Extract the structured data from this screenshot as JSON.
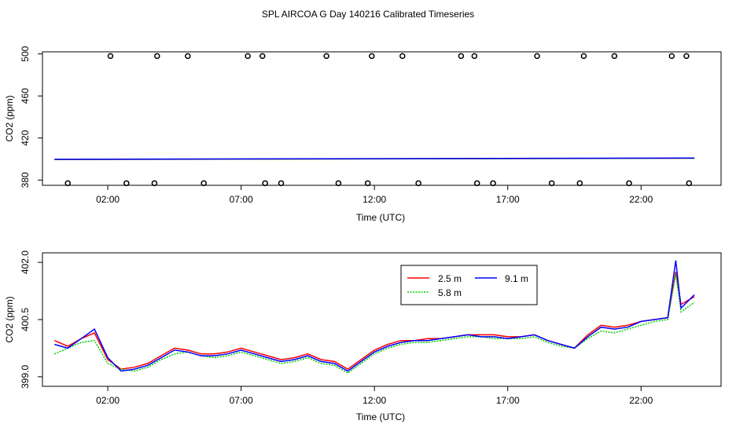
{
  "chart_data": [
    {
      "type": "scatter",
      "title": "SPL AIRCOA G  Day 140216  Calibrated Timeseries",
      "xlabel": "Time (UTC)",
      "ylabel": "CO2 (ppm)",
      "xlim": [
        -0.45,
        25
      ],
      "ylim": [
        375,
        502
      ],
      "x_ticks": [
        2,
        7,
        12,
        17,
        22
      ],
      "x_tick_labels": [
        "02:00",
        "07:00",
        "12:00",
        "17:00",
        "22:00"
      ],
      "y_ticks": [
        380,
        420,
        460,
        500
      ],
      "y_tick_labels": [
        "380",
        "420",
        "460",
        "500"
      ],
      "outliers_high_y": 498,
      "outliers_high_x": [
        2.1,
        3.85,
        5.0,
        7.25,
        7.8,
        10.2,
        11.9,
        13.05,
        15.25,
        15.75,
        18.1,
        19.85,
        21.0,
        23.15,
        23.7
      ],
      "outliers_low_y": 377,
      "outliers_low_x": [
        0.5,
        2.7,
        3.75,
        5.6,
        7.9,
        8.5,
        10.65,
        11.75,
        13.65,
        15.85,
        16.45,
        18.65,
        19.7,
        21.55,
        23.8
      ],
      "series": [
        {
          "name": "2.5 m",
          "color": "#ff0000",
          "x": [
            0.0,
            24.0
          ],
          "values": [
            399.6,
            400.8
          ]
        },
        {
          "name": "5.8 m",
          "color": "#00cc00",
          "x": [
            0.0,
            24.0
          ],
          "values": [
            399.5,
            400.7
          ]
        },
        {
          "name": "9.1 m",
          "color": "#0000ff",
          "x": [
            0.0,
            24.0
          ],
          "values": [
            399.7,
            400.9
          ]
        }
      ]
    },
    {
      "type": "line",
      "title": "",
      "xlabel": "Time (UTC)",
      "ylabel": "CO2 (ppm)",
      "xlim": [
        -0.45,
        25
      ],
      "ylim": [
        398.75,
        402.25
      ],
      "x_ticks": [
        2,
        7,
        12,
        17,
        22
      ],
      "x_tick_labels": [
        "02:00",
        "07:00",
        "12:00",
        "17:00",
        "22:00"
      ],
      "y_ticks": [
        399.0,
        400.5,
        402.0
      ],
      "y_tick_labels": [
        "399.0",
        "400.5",
        "402.0"
      ],
      "legend": {
        "position": "top-center",
        "columns": 2
      },
      "x": [
        0.0,
        0.5,
        1.0,
        1.5,
        2.0,
        2.5,
        3.0,
        3.5,
        4.0,
        4.5,
        5.0,
        5.5,
        6.0,
        6.5,
        7.0,
        7.5,
        8.0,
        8.5,
        9.0,
        9.5,
        10.0,
        10.5,
        11.0,
        11.5,
        12.0,
        12.5,
        13.0,
        13.5,
        14.0,
        14.5,
        15.0,
        15.5,
        16.0,
        16.5,
        17.0,
        17.5,
        18.0,
        18.5,
        19.0,
        19.5,
        20.0,
        20.5,
        21.0,
        21.5,
        22.0,
        22.5,
        23.0,
        23.3,
        23.5,
        24.0
      ],
      "series": [
        {
          "name": "2.5 m",
          "color": "#ff0000",
          "values": [
            399.95,
            399.8,
            400.0,
            400.15,
            399.45,
            399.2,
            399.25,
            399.35,
            399.55,
            399.75,
            399.7,
            399.6,
            399.6,
            399.65,
            399.75,
            399.65,
            399.55,
            399.45,
            399.5,
            399.6,
            399.45,
            399.4,
            399.2,
            399.45,
            399.7,
            399.85,
            399.95,
            399.95,
            400.0,
            400.0,
            400.05,
            400.1,
            400.1,
            400.1,
            400.05,
            400.05,
            400.1,
            399.95,
            399.85,
            399.75,
            400.1,
            400.35,
            400.3,
            400.35,
            400.45,
            400.5,
            400.55,
            401.75,
            400.9,
            401.1
          ]
        },
        {
          "name": "5.8 m",
          "color": "#00cc00",
          "values": [
            399.6,
            399.75,
            399.9,
            399.95,
            399.35,
            399.2,
            399.15,
            399.25,
            399.45,
            399.6,
            399.65,
            399.55,
            399.5,
            399.55,
            399.65,
            399.55,
            399.45,
            399.35,
            399.4,
            399.5,
            399.35,
            399.3,
            399.1,
            399.35,
            399.6,
            399.75,
            399.85,
            399.9,
            399.9,
            399.95,
            400.0,
            400.05,
            400.05,
            400.0,
            400.0,
            400.0,
            400.05,
            399.9,
            399.8,
            399.75,
            400.0,
            400.2,
            400.15,
            400.25,
            400.35,
            400.45,
            400.5,
            401.7,
            400.7,
            400.95
          ]
        },
        {
          "name": "9.1 m",
          "color": "#0000ff",
          "values": [
            399.85,
            399.75,
            400.0,
            400.25,
            399.5,
            399.15,
            399.2,
            399.3,
            399.5,
            399.7,
            399.65,
            399.55,
            399.55,
            399.6,
            399.7,
            399.6,
            399.5,
            399.4,
            399.45,
            399.55,
            399.4,
            399.35,
            399.15,
            399.4,
            399.65,
            399.8,
            399.9,
            399.95,
            399.95,
            400.0,
            400.05,
            400.1,
            400.05,
            400.05,
            400.0,
            400.05,
            400.1,
            399.95,
            399.85,
            399.75,
            400.05,
            400.3,
            400.25,
            400.3,
            400.45,
            400.5,
            400.55,
            402.05,
            400.8,
            401.15
          ]
        }
      ]
    }
  ]
}
